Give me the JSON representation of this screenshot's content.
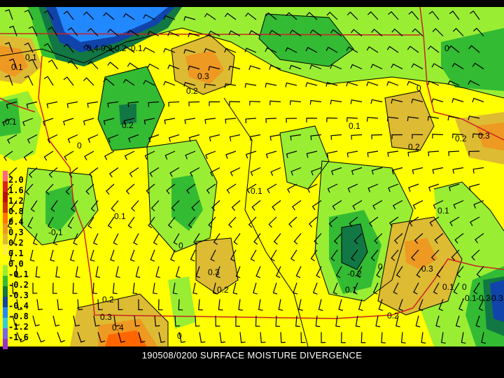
{
  "caption": "190508/0200 SURFACE MOISTURE DIVERGENCE",
  "legend": {
    "entries": [
      {
        "label": "2.0",
        "color": "#ff6688"
      },
      {
        "label": "1.6",
        "color": "#dd2222"
      },
      {
        "label": "1.2",
        "color": "#bb1111"
      },
      {
        "label": "0.8",
        "color": "#cc3300"
      },
      {
        "label": "0.4",
        "color": "#ff7700"
      },
      {
        "label": "0.3",
        "color": "#ee9922"
      },
      {
        "label": "0.2",
        "color": "#ddbb33"
      },
      {
        "label": "0.1",
        "color": "#ffee44"
      },
      {
        "label": "0.0",
        "color": "#ffff00"
      },
      {
        "label": "-0.1",
        "color": "#99ee33"
      },
      {
        "label": "-0.2",
        "color": "#33bb33"
      },
      {
        "label": "-0.3",
        "color": "#117744"
      },
      {
        "label": "-0.4",
        "color": "#1144aa"
      },
      {
        "label": "-0.8",
        "color": "#2288ff"
      },
      {
        "label": "-1.2",
        "color": "#33ccdd"
      },
      {
        "label": "-1.6",
        "color": "#7766ee"
      },
      {
        "label": "",
        "color": "#9933cc"
      }
    ]
  },
  "contour_labels": [
    "-0.4",
    "-0.3",
    "-0.2",
    "-0.1",
    "-0.1",
    "0.1",
    "0.1",
    "0.3",
    "0.2",
    "0.2",
    "0",
    "0.1",
    "0",
    "0.2",
    "0.2",
    "0.3",
    "0",
    "0.1",
    "0.1",
    "-0.1",
    "0.1",
    "0",
    "0.3",
    "0.2",
    "-0.2",
    "0.1",
    "0",
    "0.3",
    "0.1",
    "0",
    "-0.1",
    "-0.2",
    "-0.3",
    "0.2",
    "0.3",
    "0.4",
    "0",
    "0.2"
  ],
  "colors": {
    "yellow": "#ffff00",
    "orange": "#ee9922",
    "tan": "#ddbb33",
    "light_green": "#99ee33",
    "green": "#33bb33",
    "dark_green": "#117744",
    "navy": "#1144aa",
    "blue": "#2288ff",
    "border_red": "#cc2222"
  }
}
